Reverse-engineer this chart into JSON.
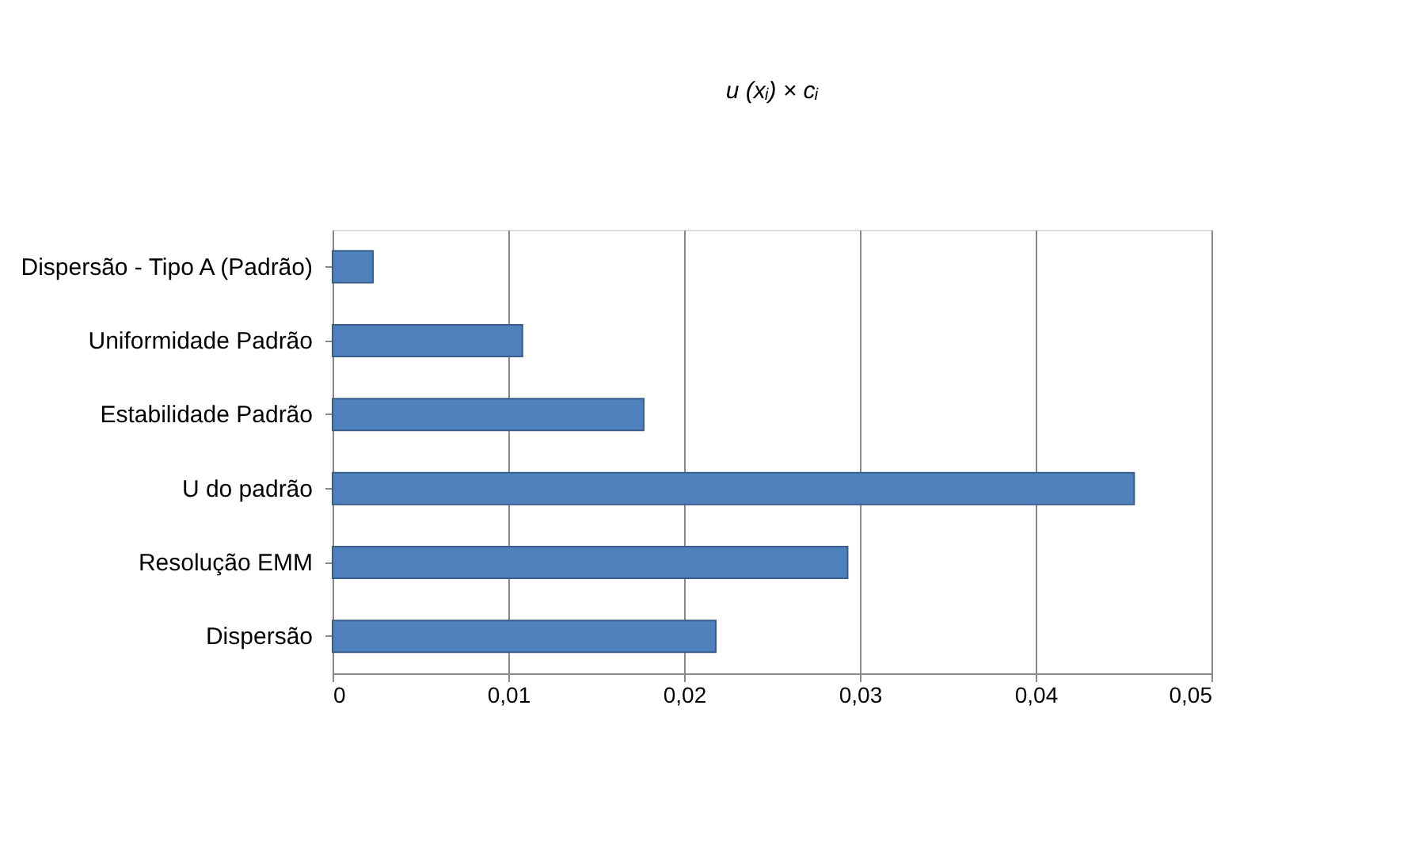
{
  "chart_data": {
    "type": "bar",
    "orientation": "horizontal",
    "title": "u (xᵢ) × cᵢ",
    "categories": [
      "Dispersão - Tipo A (Padrão)",
      "Uniformidade Padrão",
      "Estabilidade Padrão",
      "U do padrão",
      "Resolução EMM",
      "Dispersão"
    ],
    "values": [
      0.0023,
      0.0108,
      0.0177,
      0.0456,
      0.0293,
      0.0218
    ],
    "color": "#4f81bd",
    "xlim": [
      0,
      0.05
    ],
    "xticks": [
      0,
      {
        "value": 0.01,
        "label": "0,01"
      },
      {
        "value": 0.02,
        "label": "0,02"
      },
      {
        "value": 0.03,
        "label": "0,03"
      },
      {
        "value": 0.04,
        "label": "0,04"
      },
      {
        "value": 0.05,
        "label": "0,05"
      }
    ],
    "grid": "x"
  }
}
